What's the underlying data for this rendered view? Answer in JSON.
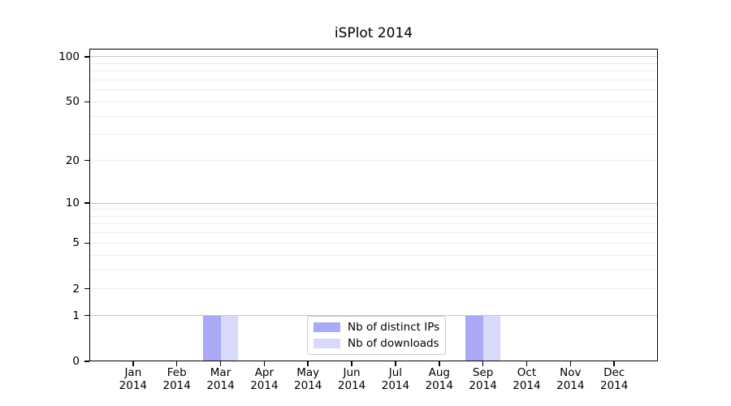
{
  "chart_data": {
    "type": "bar",
    "title": "iSPlot 2014",
    "categories": [
      "Jan 2014",
      "Feb 2014",
      "Mar 2014",
      "Apr 2014",
      "May 2014",
      "Jun 2014",
      "Jul 2014",
      "Aug 2014",
      "Sep 2014",
      "Oct 2014",
      "Nov 2014",
      "Dec 2014"
    ],
    "x_tick_months": [
      "Jan",
      "Feb",
      "Mar",
      "Apr",
      "May",
      "Jun",
      "Jul",
      "Aug",
      "Sep",
      "Oct",
      "Nov",
      "Dec"
    ],
    "x_tick_years": [
      "2014",
      "2014",
      "2014",
      "2014",
      "2014",
      "2014",
      "2014",
      "2014",
      "2014",
      "2014",
      "2014",
      "2014"
    ],
    "series": [
      {
        "name": "Nb of distinct IPs",
        "color": "#a9a9f6",
        "values": [
          0,
          0,
          1,
          0,
          0,
          0,
          0,
          0,
          1,
          0,
          0,
          0
        ]
      },
      {
        "name": "Nb of downloads",
        "color": "#d9d9f9",
        "values": [
          0,
          0,
          1,
          0,
          0,
          0,
          0,
          0,
          1,
          0,
          0,
          0
        ]
      }
    ],
    "xlabel": "",
    "ylabel": "",
    "yscale": "log1p",
    "ylim": [
      0,
      113
    ],
    "yticks": [
      0,
      1,
      2,
      5,
      10,
      20,
      50,
      100
    ],
    "major_gridlines": [
      1,
      10,
      100
    ],
    "minor_gridlines": [
      2,
      3,
      4,
      5,
      6,
      7,
      8,
      9,
      20,
      30,
      40,
      50,
      60,
      70,
      80,
      90
    ],
    "grid": true,
    "bar_width_fraction": 0.4,
    "legend": {
      "position": "lower center inside",
      "entries": [
        "Nb of distinct IPs",
        "Nb of downloads"
      ]
    },
    "colors": {
      "distinct_ips_bar": "#a9a9f6",
      "downloads_bar": "#d9d9f9",
      "major_grid": "#c6c6c6",
      "minor_grid": "#ececec",
      "spine": "#000000",
      "legend_border": "#cccccc",
      "text": "#000000",
      "background": "#ffffff"
    }
  }
}
